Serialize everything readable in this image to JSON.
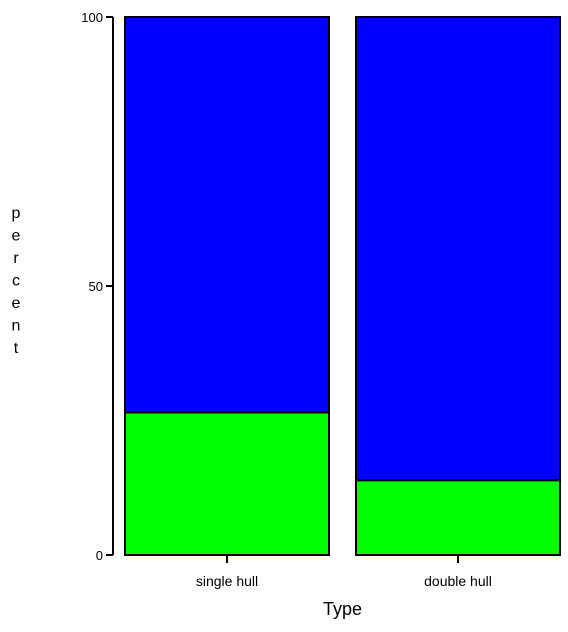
{
  "chart_data": {
    "type": "bar",
    "stacked": true,
    "title": "",
    "xlabel": "Type",
    "ylabel": "percent",
    "ylim": [
      0,
      100
    ],
    "yticks": [
      0,
      50,
      100
    ],
    "categories": [
      "single hull",
      "double hull"
    ],
    "series": [
      {
        "values": [
          26.5,
          13.9
        ],
        "color": "#00ff00"
      },
      {
        "values": [
          73.5,
          86.1
        ],
        "color": "#0000ff"
      }
    ],
    "grid": false,
    "legend": "none"
  }
}
